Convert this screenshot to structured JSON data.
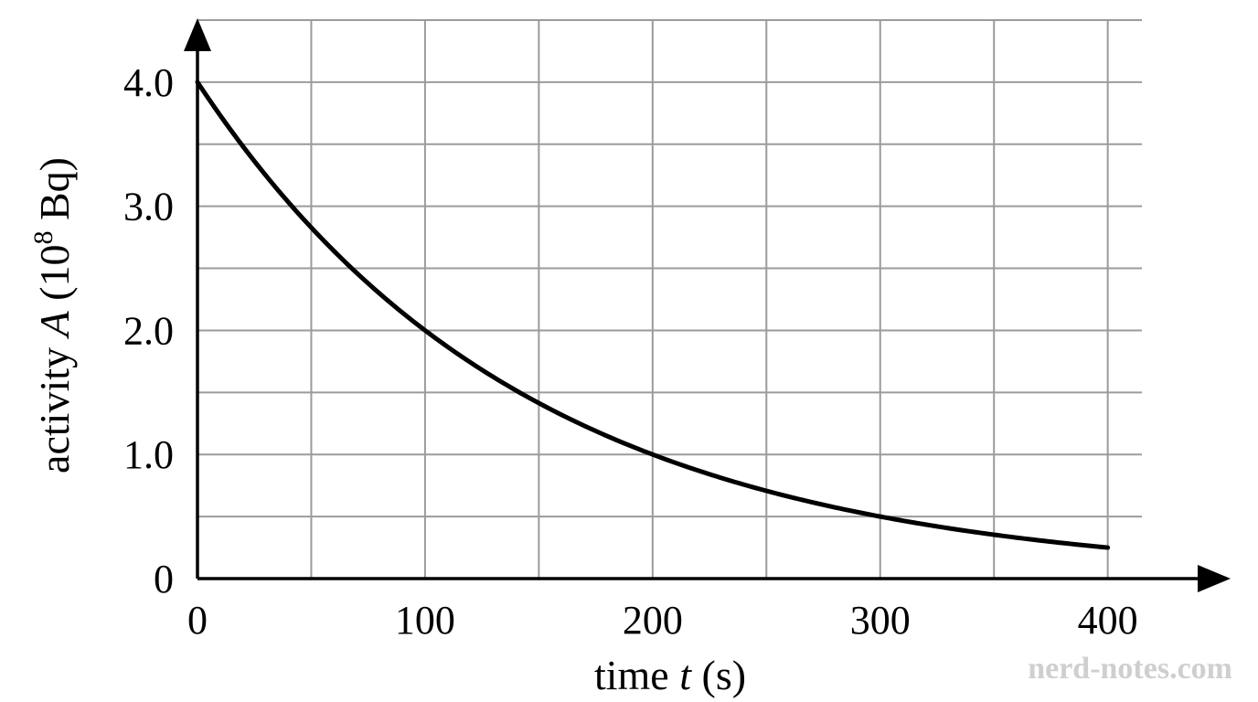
{
  "chart_data": {
    "type": "line",
    "xlabel": {
      "prefix": "time ",
      "variable": "t",
      "suffix": " (s)"
    },
    "ylabel": {
      "prefix": "activity ",
      "variable": "A",
      "unit_open": " (10",
      "unit_exponent": "8",
      "unit_close": " Bq)"
    },
    "xlim": [
      0,
      415
    ],
    "ylim": [
      0,
      4.5
    ],
    "x_gridlines": [
      0,
      50,
      100,
      150,
      200,
      250,
      300,
      350,
      400
    ],
    "y_gridlines": [
      0,
      0.5,
      1.0,
      1.5,
      2.0,
      2.5,
      3.0,
      3.5,
      4.0,
      4.5
    ],
    "x_ticks": [
      {
        "value": 0,
        "label": "0"
      },
      {
        "value": 100,
        "label": "100"
      },
      {
        "value": 200,
        "label": "200"
      },
      {
        "value": 300,
        "label": "300"
      },
      {
        "value": 400,
        "label": "400"
      }
    ],
    "y_ticks": [
      {
        "value": 0,
        "label": "0"
      },
      {
        "value": 1.0,
        "label": "1.0"
      },
      {
        "value": 2.0,
        "label": "2.0"
      },
      {
        "value": 3.0,
        "label": "3.0"
      },
      {
        "value": 4.0,
        "label": "4.0"
      }
    ],
    "grid": true,
    "series": [
      {
        "x": [
          0,
          25,
          50,
          75,
          100,
          125,
          150,
          175,
          200,
          225,
          250,
          275,
          300,
          325,
          350,
          375,
          400
        ],
        "y": [
          4.0,
          3.36,
          2.83,
          2.38,
          2.0,
          1.68,
          1.41,
          1.19,
          1.0,
          0.84,
          0.71,
          0.59,
          0.5,
          0.42,
          0.35,
          0.3,
          0.25
        ]
      }
    ],
    "colors": {
      "curve": "#000000",
      "grid": "#9b9b9b",
      "axes": "#000000"
    }
  },
  "watermark": "nerd-notes.com"
}
